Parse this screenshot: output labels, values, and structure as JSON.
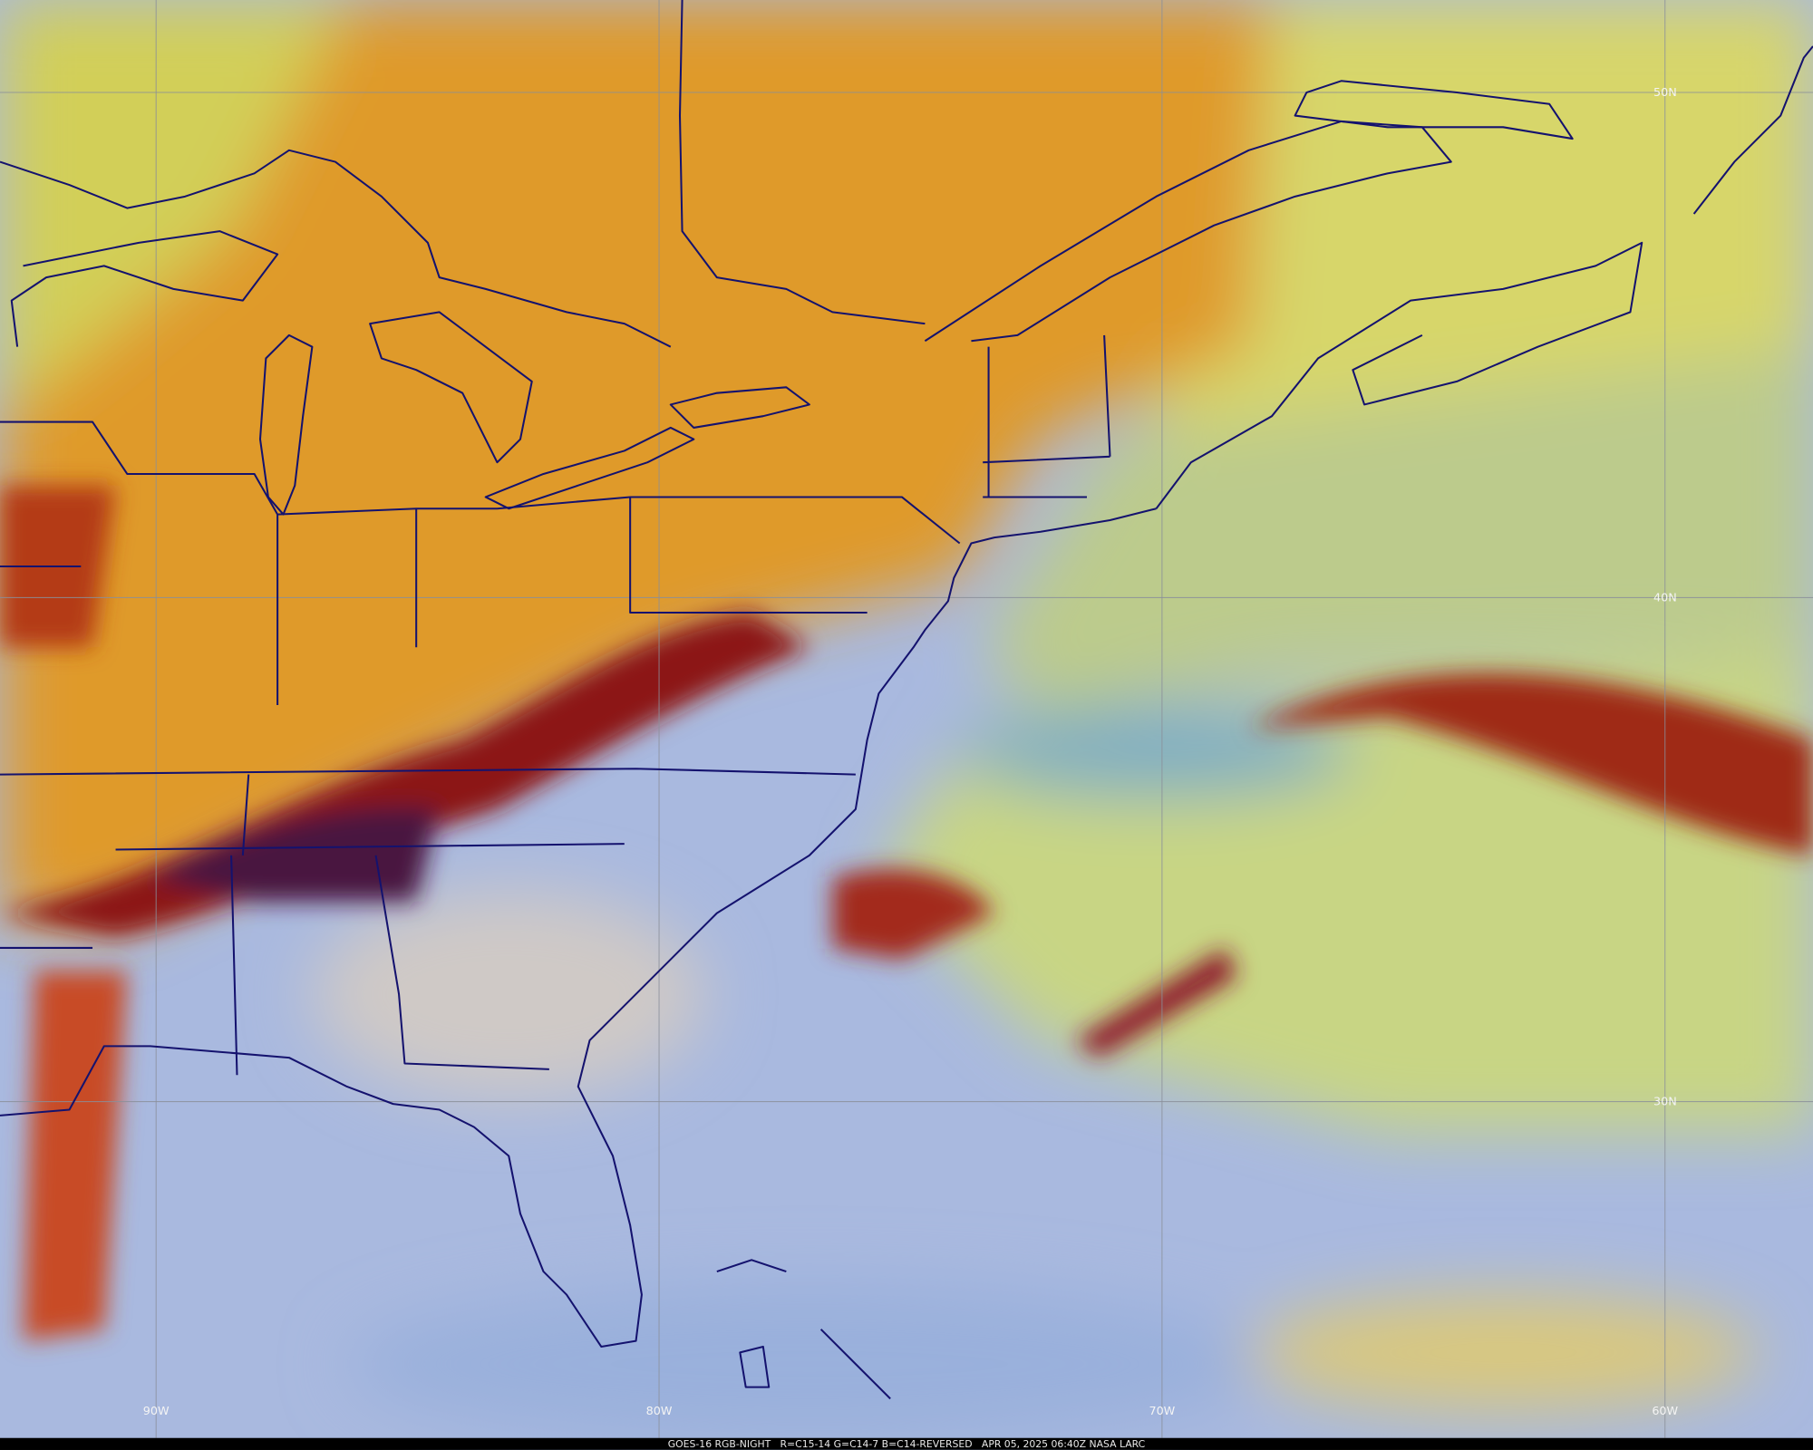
{
  "grid": {
    "latitudes": [
      "50N",
      "40N",
      "30N"
    ],
    "longitudes": [
      "90W",
      "80W",
      "70W",
      "60W"
    ]
  },
  "caption": "GOES-16 RGB-NIGHT   R=C15-14 G=C14-7 B=C14-REVERSED   APR 05, 2025 06:40Z NASA LARC"
}
